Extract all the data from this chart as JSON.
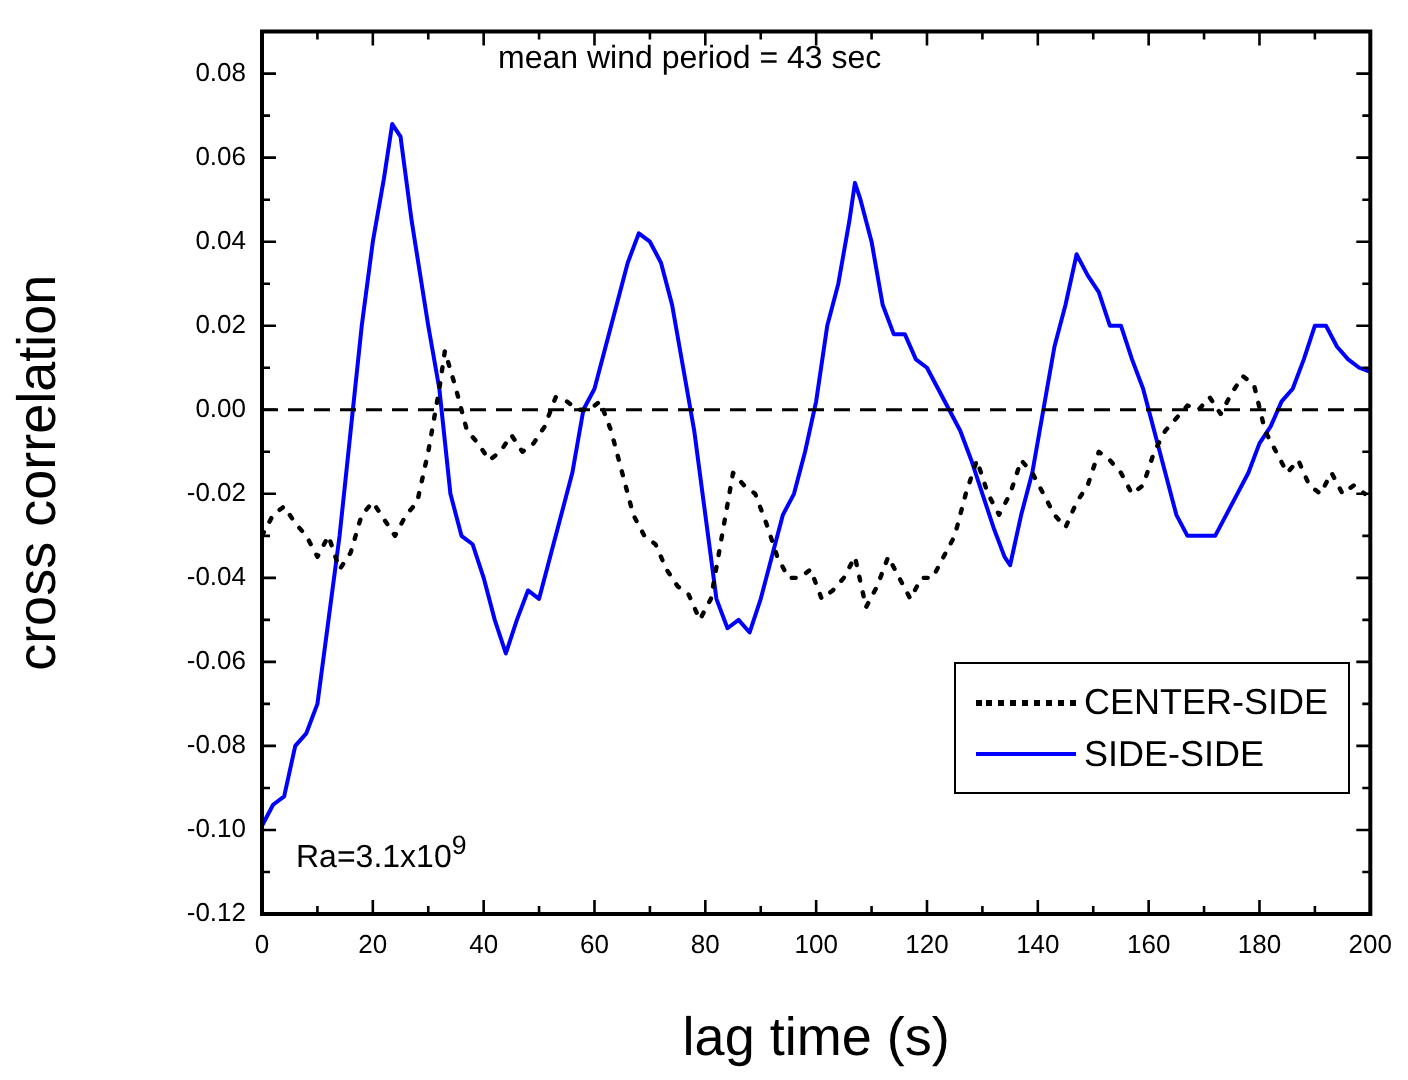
{
  "chart_data": {
    "type": "line",
    "xlabel": "lag time (s)",
    "ylabel": "cross correlation",
    "annotations": [
      "mean wind period = 43 sec",
      "Ra=3.1x10$^{9}$"
    ],
    "xlim": [
      0,
      200
    ],
    "xticks": [
      0,
      {
        "value": 10,
        "label": null
      },
      20,
      {
        "value": 30,
        "label": null
      },
      40,
      {
        "value": 50,
        "label": null
      },
      60,
      {
        "value": 70,
        "label": null
      },
      80,
      {
        "value": 90,
        "label": null
      },
      100,
      {
        "value": 110,
        "label": null
      },
      120,
      {
        "value": 130,
        "label": null
      },
      140,
      {
        "value": 150,
        "label": null
      },
      160,
      {
        "value": 170,
        "label": null
      },
      180,
      {
        "value": 190,
        "label": null
      },
      200
    ],
    "ylim": [
      -0.12,
      0.09
    ],
    "yticks": [
      -0.12,
      {
        "value": -0.11,
        "label": null
      },
      {
        "value": -0.1,
        "label": "-0.10"
      },
      {
        "value": -0.09,
        "label": null
      },
      -0.08,
      {
        "value": -0.07,
        "label": null
      },
      -0.06,
      {
        "value": -0.05,
        "label": null
      },
      -0.04,
      {
        "value": -0.03,
        "label": null
      },
      -0.02,
      {
        "value": -0.01,
        "label": null
      },
      {
        "value": 0,
        "label": "0.00"
      },
      {
        "value": 0.01,
        "label": null
      },
      0.02,
      {
        "value": 0.03,
        "label": null
      },
      0.04,
      {
        "value": 0.05,
        "label": null
      },
      0.06,
      {
        "value": 0.07,
        "label": null
      },
      0.08
    ],
    "ref_lines": [
      {
        "axis": "y",
        "value": 0,
        "color": "#000000",
        "line_style": "dashed"
      }
    ],
    "legend": "bottom right",
    "grid": false,
    "marker": "none",
    "series": [
      {
        "name": "CENTER-SIDE",
        "color": "#000000",
        "line_style": "dotted",
        "x": [
          0,
          2,
          4,
          6,
          8,
          10,
          12,
          14,
          16,
          18,
          20,
          22,
          24,
          26,
          28,
          30,
          32,
          33,
          35,
          37,
          39,
          41,
          43,
          45,
          47,
          49,
          51,
          53,
          55,
          57,
          59,
          61,
          63,
          65,
          67,
          69,
          71,
          73,
          75,
          77,
          79,
          81,
          83,
          85,
          87,
          89,
          91,
          93,
          95,
          97,
          99,
          101,
          103,
          105,
          107,
          109,
          111,
          113,
          115,
          117,
          119,
          121,
          123,
          125,
          127,
          129,
          131,
          133,
          135,
          137,
          139,
          141,
          143,
          145,
          147,
          149,
          151,
          153,
          155,
          157,
          159,
          161,
          163,
          165,
          167,
          169,
          171,
          173,
          175,
          177,
          179,
          181,
          183,
          185,
          187,
          189,
          191,
          193,
          195,
          197,
          199
        ],
        "values": [
          -0.03,
          -0.025,
          -0.023,
          -0.027,
          -0.03,
          -0.035,
          -0.03,
          -0.038,
          -0.034,
          -0.025,
          -0.022,
          -0.026,
          -0.03,
          -0.025,
          -0.022,
          -0.01,
          0.005,
          0.014,
          0.005,
          -0.005,
          -0.008,
          -0.012,
          -0.01,
          -0.006,
          -0.01,
          -0.008,
          -0.004,
          0.003,
          0.002,
          0,
          0,
          0.002,
          -0.005,
          -0.015,
          -0.025,
          -0.03,
          -0.032,
          -0.038,
          -0.042,
          -0.044,
          -0.05,
          -0.045,
          -0.03,
          -0.015,
          -0.018,
          -0.02,
          -0.027,
          -0.035,
          -0.04,
          -0.04,
          -0.038,
          -0.045,
          -0.043,
          -0.04,
          -0.035,
          -0.047,
          -0.042,
          -0.035,
          -0.04,
          -0.045,
          -0.04,
          -0.04,
          -0.035,
          -0.03,
          -0.02,
          -0.012,
          -0.02,
          -0.025,
          -0.02,
          -0.012,
          -0.015,
          -0.02,
          -0.025,
          -0.028,
          -0.022,
          -0.018,
          -0.01,
          -0.012,
          -0.015,
          -0.02,
          -0.018,
          -0.01,
          -0.005,
          -0.002,
          0.001,
          0,
          0.003,
          -0.001,
          0.004,
          0.008,
          0.006,
          -0.005,
          -0.01,
          -0.015,
          -0.012,
          -0.018,
          -0.02,
          -0.015,
          -0.02,
          -0.018,
          -0.02
        ]
      },
      {
        "name": "SIDE-SIDE",
        "color": "#0000ff",
        "line_style": "solid",
        "x": [
          0,
          2,
          4,
          6,
          8,
          10,
          12,
          14,
          16,
          18,
          20,
          22,
          23.5,
          25,
          27,
          30,
          32,
          34,
          36,
          38,
          40,
          42,
          44,
          46,
          48,
          50,
          52,
          54,
          56,
          58,
          60,
          62,
          64,
          66,
          68,
          70,
          72,
          74,
          76,
          78,
          80,
          82,
          84,
          86,
          88,
          90,
          92,
          94,
          96,
          98,
          100,
          102,
          104,
          106,
          107,
          108,
          110,
          112,
          114,
          116,
          118,
          120,
          122,
          124,
          126,
          128,
          130,
          132,
          134,
          135,
          137,
          139,
          141,
          143,
          145,
          147,
          149,
          151,
          153,
          155,
          157,
          159,
          161,
          163,
          165,
          167,
          170,
          172,
          174,
          176,
          178,
          180,
          182,
          184,
          186,
          188,
          190,
          192,
          194,
          196,
          198,
          200
        ],
        "values": [
          -0.099,
          -0.094,
          -0.092,
          -0.08,
          -0.077,
          -0.07,
          -0.05,
          -0.03,
          -0.005,
          0.02,
          0.04,
          0.055,
          0.068,
          0.065,
          0.045,
          0.02,
          0.005,
          -0.02,
          -0.03,
          -0.032,
          -0.04,
          -0.05,
          -0.058,
          -0.05,
          -0.043,
          -0.045,
          -0.035,
          -0.025,
          -0.015,
          0,
          0.005,
          0.015,
          0.025,
          0.035,
          0.042,
          0.04,
          0.035,
          0.025,
          0.01,
          -0.005,
          -0.025,
          -0.045,
          -0.052,
          -0.05,
          -0.053,
          -0.045,
          -0.035,
          -0.025,
          -0.02,
          -0.01,
          0.002,
          0.02,
          0.03,
          0.045,
          0.054,
          0.05,
          0.04,
          0.025,
          0.018,
          0.018,
          0.012,
          0.01,
          0.005,
          0,
          -0.005,
          -0.012,
          -0.02,
          -0.028,
          -0.035,
          -0.037,
          -0.025,
          -0.015,
          0,
          0.015,
          0.025,
          0.037,
          0.032,
          0.028,
          0.02,
          0.02,
          0.012,
          0.005,
          -0.005,
          -0.015,
          -0.025,
          -0.03,
          -0.03,
          -0.03,
          -0.025,
          -0.02,
          -0.015,
          -0.008,
          -0.004,
          0.002,
          0.005,
          0.012,
          0.02,
          0.02,
          0.015,
          0.012,
          0.01,
          0.009
        ]
      }
    ]
  }
}
